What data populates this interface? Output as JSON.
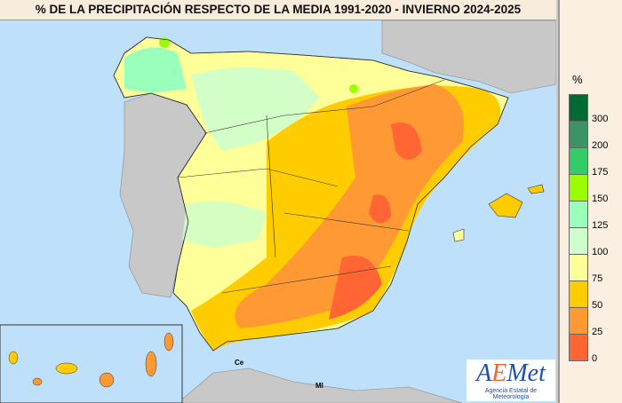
{
  "title": "% DE LA PRECIPITACIÓN RESPECTO DE LA MEDIA 1991-2020 - INVIERNO 2024-2025",
  "legend": {
    "unit": "%",
    "colors": [
      "#006b34",
      "#3a9466",
      "#33cc66",
      "#99ff00",
      "#99ffbb",
      "#ccffcc",
      "#ffff99",
      "#ffcc00",
      "#ff9933",
      "#ff6633"
    ],
    "labels": [
      "300",
      "200",
      "175",
      "150",
      "125",
      "100",
      "75",
      "50",
      "25",
      "0"
    ]
  },
  "cities": {
    "ceuta": "Ce",
    "melilla": "Ml"
  },
  "logo": {
    "name": "AEMet",
    "subtitle": "Agencia Estatal de Meteorología"
  }
}
